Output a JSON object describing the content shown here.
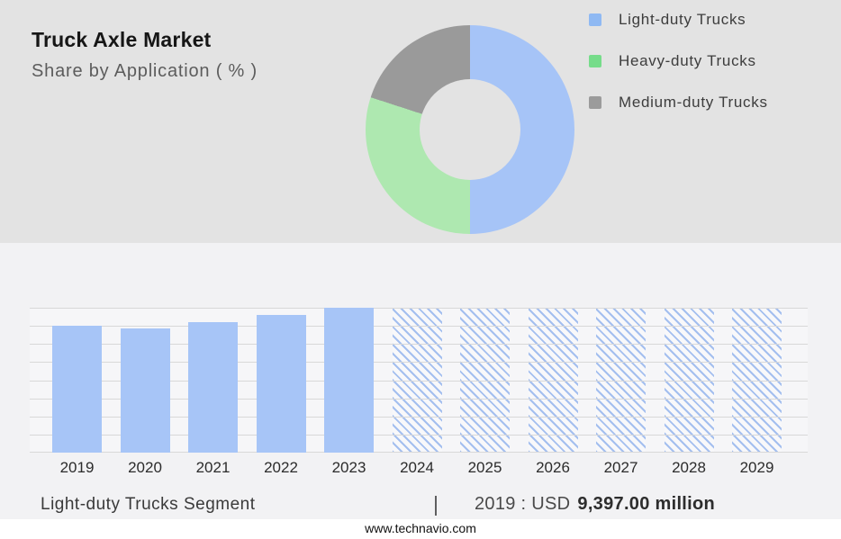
{
  "header": {
    "title": "Truck Axle Market",
    "subtitle": "Share by Application ( % )"
  },
  "legend": {
    "items": [
      {
        "label": "Light-duty Trucks",
        "color": "#8fb9f3"
      },
      {
        "label": "Heavy-duty Trucks",
        "color": "#76dc8a"
      },
      {
        "label": "Medium-duty Trucks",
        "color": "#9b9b9b"
      }
    ]
  },
  "chart_data": [
    {
      "type": "pie",
      "style": "donut",
      "title": "Truck Axle Market — Share by Application ( % )",
      "labels": [
        "Light-duty Trucks",
        "Heavy-duty Trucks",
        "Medium-duty Trucks"
      ],
      "values": [
        50,
        30,
        20
      ],
      "colors": [
        "#a6c4f7",
        "#aee8b0",
        "#9a9a9a"
      ],
      "legend_position": "right",
      "start_angle_deg": 0,
      "direction": "clockwise"
    },
    {
      "type": "bar",
      "categories": [
        "2019",
        "2020",
        "2021",
        "2022",
        "2023",
        "2024",
        "2025",
        "2026",
        "2027",
        "2028",
        "2029"
      ],
      "values": [
        87.4,
        85.5,
        89.9,
        95,
        100,
        100,
        100,
        100,
        100,
        100,
        100
      ],
      "values_unit": "percent of plot height (y-axis unlabeled)",
      "known_point": {
        "category": "2019",
        "value_usd_million": 9397.0
      },
      "solid_categories": [
        "2019",
        "2020",
        "2021",
        "2022",
        "2023"
      ],
      "hatched_categories": [
        "2024",
        "2025",
        "2026",
        "2027",
        "2028",
        "2029"
      ],
      "bar_color": "#a7c5f7",
      "hatch_color": "#a4bfef",
      "hatch_bg": "#f8f8fa",
      "xlabel": "",
      "ylabel": "",
      "ylim": [
        0,
        100
      ],
      "gridlines": 9,
      "grid": true,
      "legend_position": "none"
    }
  ],
  "caption": {
    "segment": "Light-duty Trucks Segment",
    "separator": "|",
    "value_prefix": "2019 : USD",
    "value_bold": "9,397.00 million"
  },
  "footer": {
    "url": "www.technavio.com"
  },
  "colors": {
    "top_bg": "#e3e3e3",
    "bottom_bg": "#f2f2f4",
    "plot_bg": "#f6f6f8",
    "gridline": "#d8d8d8",
    "footer_bg": "#ffffff",
    "title_text": "#161616",
    "subtitle_text": "#5c5c5c",
    "axis_label_text": "#2b2b2b",
    "caption_text": "#3a3a3a"
  }
}
